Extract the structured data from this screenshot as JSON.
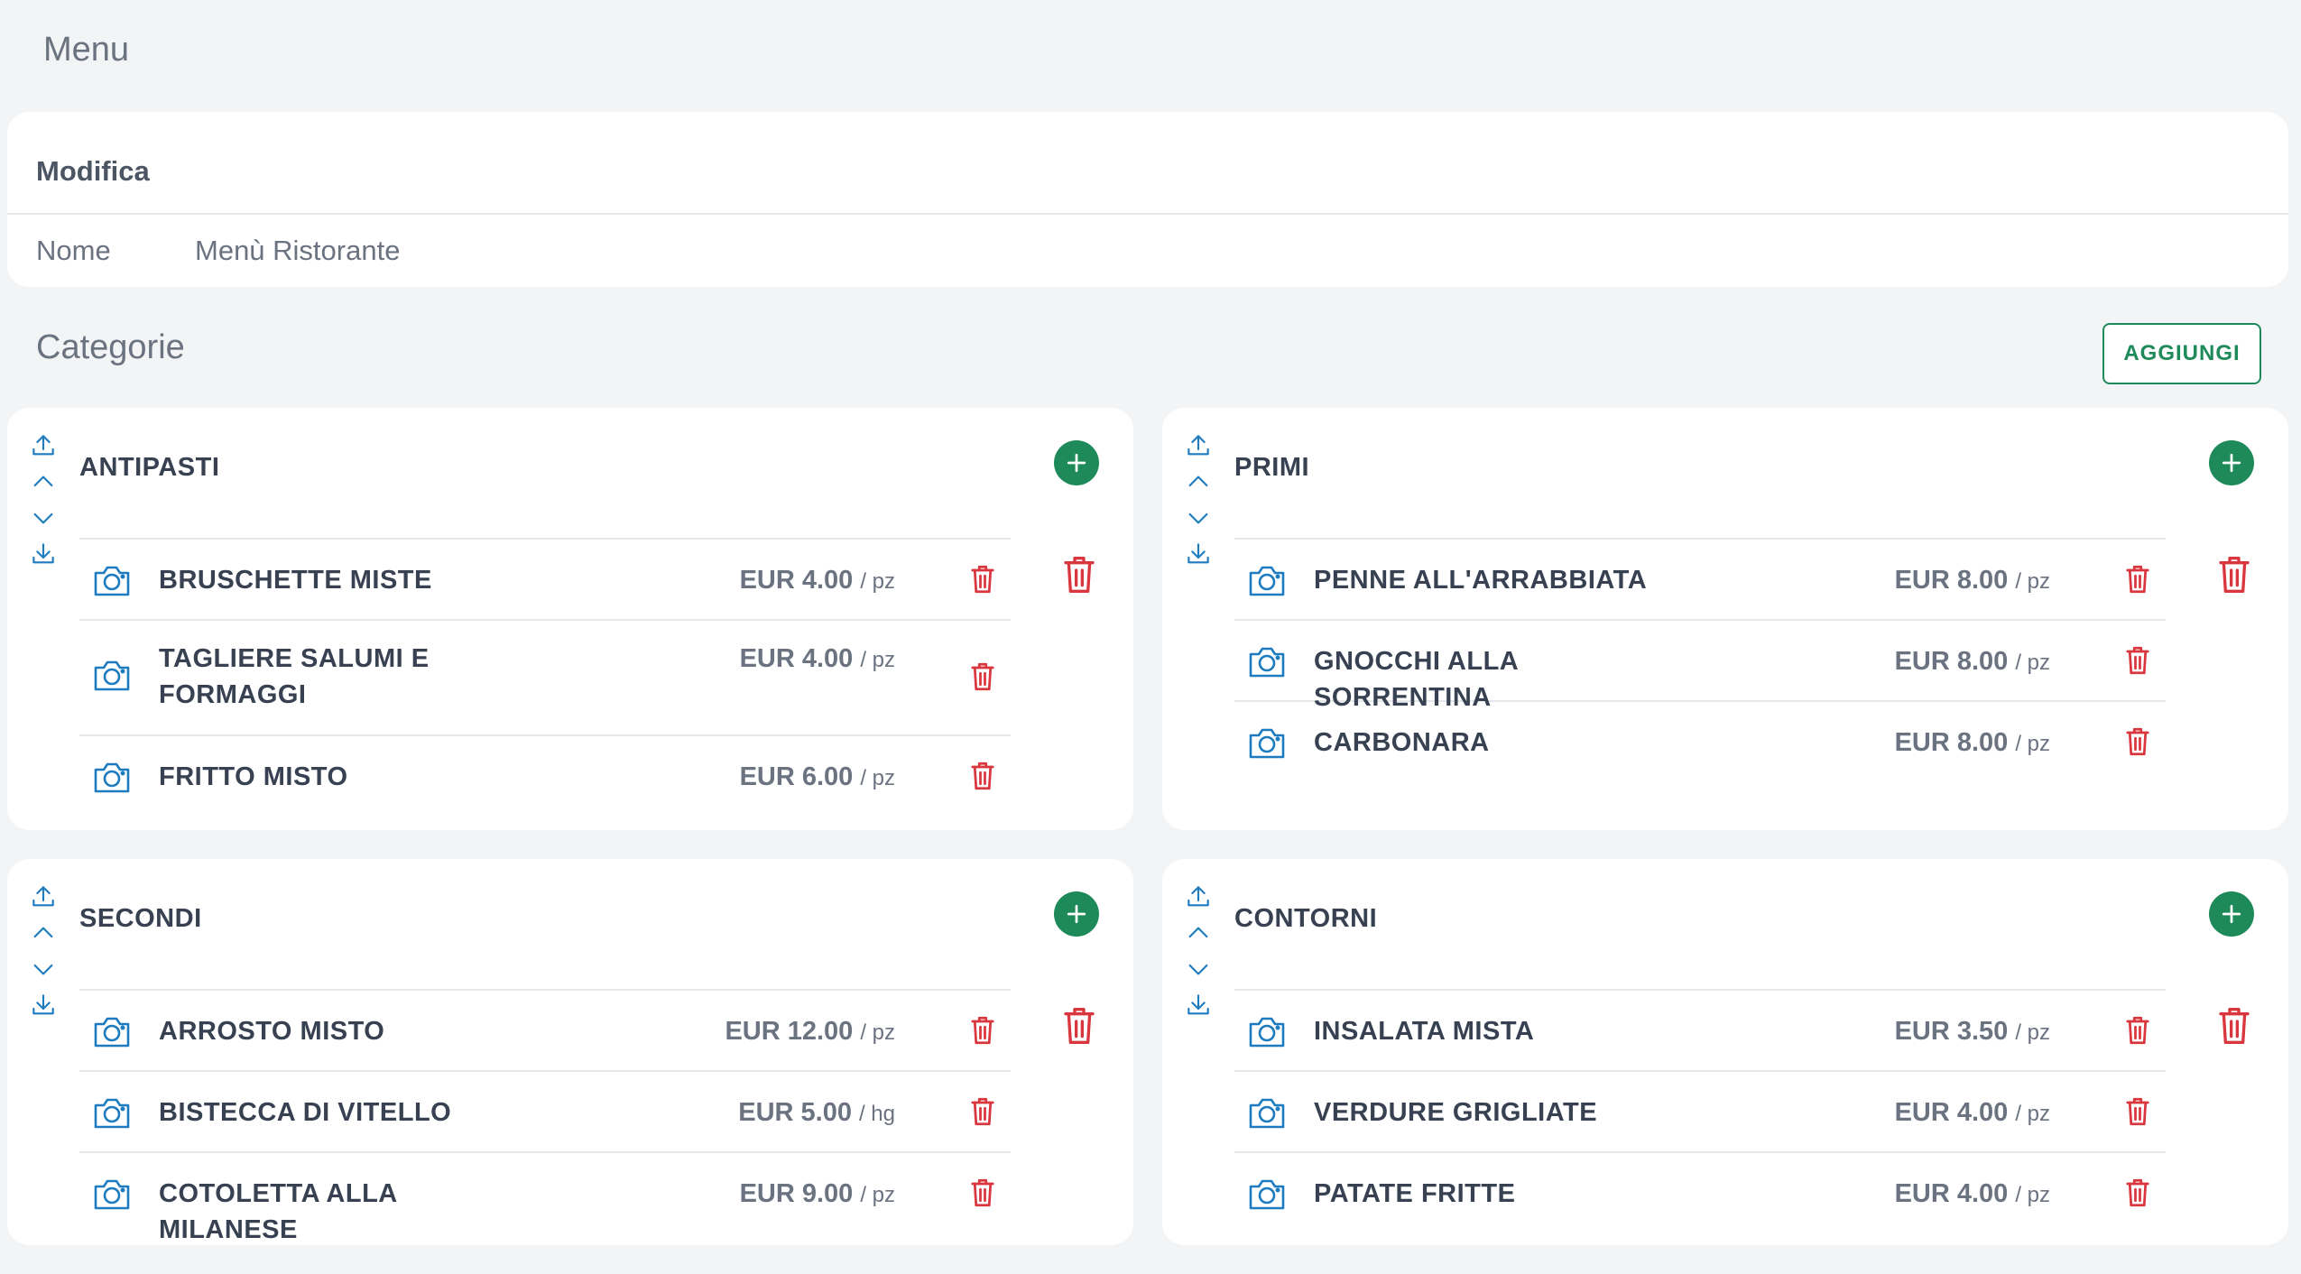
{
  "page": {
    "title": "Menu"
  },
  "edit": {
    "heading": "Modifica",
    "name_label": "Nome",
    "name_value": "Menù Ristorante"
  },
  "categories_section": {
    "title": "Categorie",
    "add_label": "AGGIUNGI"
  },
  "colors": {
    "accent_green": "#1e8a5a",
    "icon_blue": "#1d7bc0",
    "delete_red": "#d9363e"
  },
  "categories": [
    {
      "name": "ANTIPASTI",
      "items": [
        {
          "name": "BRUSCHETTE MISTE",
          "price": "EUR 4.00",
          "unit": "/ pz"
        },
        {
          "name": "TAGLIERE SALUMI E FORMAGGI",
          "price": "EUR 4.00",
          "unit": "/ pz"
        },
        {
          "name": "FRITTO MISTO",
          "price": "EUR 6.00",
          "unit": "/ pz"
        }
      ]
    },
    {
      "name": "PRIMI",
      "items": [
        {
          "name": "PENNE ALL'ARRABBIATA",
          "price": "EUR 8.00",
          "unit": "/ pz"
        },
        {
          "name": "GNOCCHI ALLA SORRENTINA",
          "price": "EUR 8.00",
          "unit": "/ pz"
        },
        {
          "name": "CARBONARA",
          "price": "EUR 8.00",
          "unit": "/ pz"
        }
      ]
    },
    {
      "name": "SECONDI",
      "items": [
        {
          "name": "ARROSTO MISTO",
          "price": "EUR 12.00",
          "unit": "/ pz"
        },
        {
          "name": "BISTECCA DI VITELLO",
          "price": "EUR 5.00",
          "unit": "/ hg"
        },
        {
          "name": "COTOLETTA ALLA MILANESE",
          "price": "EUR 9.00",
          "unit": "/ pz"
        }
      ]
    },
    {
      "name": "CONTORNI",
      "items": [
        {
          "name": "INSALATA MISTA",
          "price": "EUR 3.50",
          "unit": "/ pz"
        },
        {
          "name": "VERDURE GRIGLIATE",
          "price": "EUR 4.00",
          "unit": "/ pz"
        },
        {
          "name": "PATATE FRITTE",
          "price": "EUR 4.00",
          "unit": "/ pz"
        }
      ]
    }
  ]
}
